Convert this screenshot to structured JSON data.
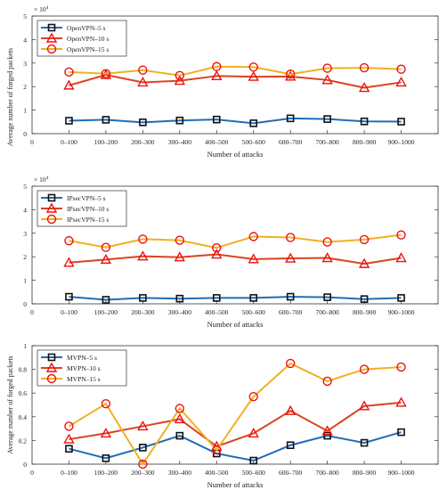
{
  "chart_data": [
    {
      "type": "line",
      "exponent_label": "× 10",
      "exponent_power": "4",
      "xlabel": "Number of attacks",
      "ylabel": "Average number of forged packets",
      "ylim": [
        0,
        5
      ],
      "yticks": [
        "0",
        "1",
        "2",
        "3",
        "4",
        "5"
      ],
      "grid": false,
      "legend_position": "top-left",
      "categories": [
        "0–100",
        "100–200",
        "200–300",
        "300–400",
        "400–500",
        "500–600",
        "600–700",
        "700–800",
        "800–900",
        "900–1000"
      ],
      "series": [
        {
          "name": "OpenVPN–5 s",
          "marker": "square",
          "color": "#1f6db5",
          "values": [
            0.55,
            0.59,
            0.48,
            0.56,
            0.6,
            0.44,
            0.65,
            0.62,
            0.52,
            0.51
          ]
        },
        {
          "name": "OpenVPN–10 s",
          "marker": "triangle",
          "color": "#d9431e",
          "values": [
            2.05,
            2.5,
            2.18,
            2.25,
            2.45,
            2.42,
            2.43,
            2.28,
            1.95,
            2.18
          ]
        },
        {
          "name": "OpenVPN–15 s",
          "marker": "circle",
          "color": "#efb120",
          "values": [
            2.62,
            2.55,
            2.7,
            2.47,
            2.85,
            2.83,
            2.53,
            2.78,
            2.8,
            2.74
          ]
        }
      ]
    },
    {
      "type": "line",
      "exponent_label": "× 10",
      "exponent_power": "4",
      "xlabel": "Number of attacks",
      "ylabel": "",
      "ylim": [
        0,
        5
      ],
      "yticks": [
        "0",
        "1",
        "2",
        "3",
        "4",
        "5"
      ],
      "grid": false,
      "legend_position": "top-left",
      "categories": [
        "0–100",
        "100–200",
        "200–300",
        "300–400",
        "400–500",
        "500–600",
        "600–700",
        "700–800",
        "800–900",
        "900–1000"
      ],
      "series": [
        {
          "name": "IPsecVPN–5 s",
          "marker": "square",
          "color": "#1f6db5",
          "values": [
            0.3,
            0.17,
            0.25,
            0.22,
            0.25,
            0.25,
            0.3,
            0.28,
            0.2,
            0.25
          ]
        },
        {
          "name": "IPsecVPN–10 s",
          "marker": "triangle",
          "color": "#d9431e",
          "values": [
            1.75,
            1.88,
            2.02,
            1.98,
            2.1,
            1.9,
            1.93,
            1.95,
            1.7,
            1.95
          ]
        },
        {
          "name": "IPsecVPN–15 s",
          "marker": "circle",
          "color": "#efb120",
          "values": [
            2.68,
            2.4,
            2.75,
            2.7,
            2.38,
            2.86,
            2.82,
            2.63,
            2.73,
            2.93
          ]
        }
      ]
    },
    {
      "type": "line",
      "xlabel": "Number of attacks",
      "ylabel": "Average number of forged packets",
      "ylim": [
        0,
        1
      ],
      "yticks": [
        "0",
        "0.2",
        "0.4",
        "0.6",
        "0.8",
        "1"
      ],
      "grid": false,
      "legend_position": "top-left",
      "categories": [
        "0–100",
        "100–200",
        "200–300",
        "300–400",
        "400–500",
        "500–600",
        "600–700",
        "700–800",
        "800–900",
        "900–1000"
      ],
      "series": [
        {
          "name": "MVPN–5 s",
          "marker": "square",
          "color": "#1f6db5",
          "values": [
            0.13,
            0.05,
            0.14,
            0.24,
            0.09,
            0.03,
            0.16,
            0.24,
            0.18,
            0.27
          ]
        },
        {
          "name": "MVPN–10 s",
          "marker": "triangle",
          "color": "#d9431e",
          "values": [
            0.21,
            0.26,
            0.32,
            0.38,
            0.15,
            0.26,
            0.45,
            0.28,
            0.49,
            0.52
          ]
        },
        {
          "name": "MVPN–15 s",
          "marker": "circle",
          "color": "#efb120",
          "values": [
            0.32,
            0.51,
            0.0,
            0.47,
            0.12,
            0.57,
            0.85,
            0.7,
            0.8,
            0.82
          ]
        }
      ]
    }
  ]
}
